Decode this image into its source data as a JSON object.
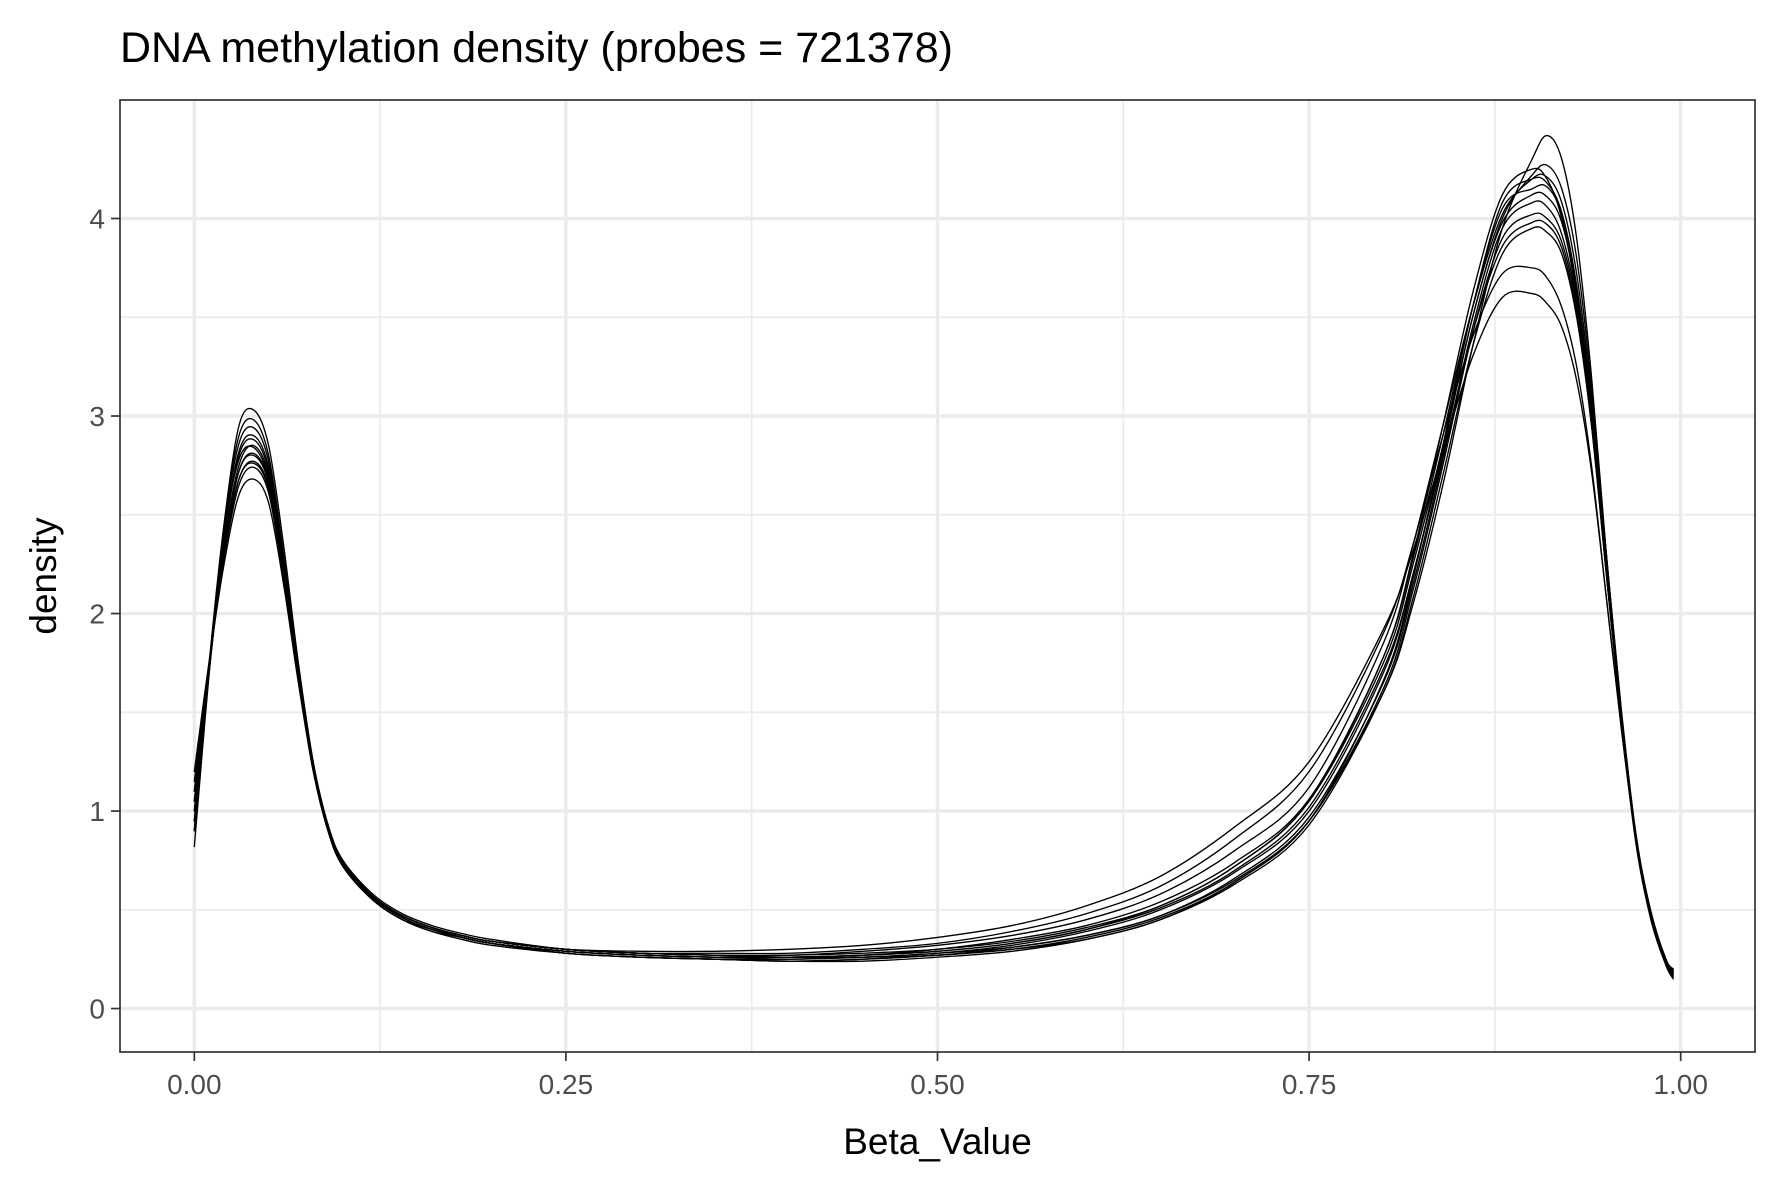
{
  "chart_data": {
    "type": "line",
    "title": "DNA methylation density (probes = 721378)",
    "xlabel": "Beta_Value",
    "ylabel": "density",
    "xlim": [
      -0.05,
      1.05
    ],
    "ylim": [
      -0.22,
      4.6
    ],
    "x_ticks": [
      0.0,
      0.25,
      0.5,
      0.75,
      1.0
    ],
    "x_tick_labels": [
      "0.00",
      "0.25",
      "0.50",
      "0.75",
      "1.00"
    ],
    "y_ticks": [
      0,
      1,
      2,
      3,
      4
    ],
    "y_tick_labels": [
      "0",
      "1",
      "2",
      "3",
      "4"
    ],
    "grid": true,
    "legend": "none",
    "line_color": "#000000",
    "x": [
      0,
      0.01,
      0.02,
      0.03,
      0.04,
      0.05,
      0.06,
      0.07,
      0.08,
      0.09,
      0.1,
      0.12,
      0.14,
      0.16,
      0.18,
      0.2,
      0.25,
      0.3,
      0.35,
      0.4,
      0.45,
      0.5,
      0.55,
      0.6,
      0.65,
      0.7,
      0.75,
      0.8,
      0.82,
      0.84,
      0.86,
      0.88,
      0.9,
      0.91,
      0.92,
      0.93,
      0.94,
      0.95,
      0.96,
      0.97,
      0.98,
      0.99,
      0.995
    ],
    "series": [
      {
        "values": [
          0.82,
          1.7,
          2.45,
          2.95,
          3.03,
          2.85,
          2.35,
          1.75,
          1.25,
          0.93,
          0.75,
          0.58,
          0.48,
          0.42,
          0.38,
          0.35,
          0.3,
          0.28,
          0.27,
          0.26,
          0.26,
          0.28,
          0.31,
          0.37,
          0.47,
          0.65,
          0.95,
          1.6,
          2.05,
          2.65,
          3.35,
          3.95,
          4.3,
          4.42,
          4.3,
          3.9,
          3.2,
          2.3,
          1.5,
          0.85,
          0.45,
          0.22,
          0.15
        ]
      },
      {
        "values": [
          0.9,
          1.75,
          2.45,
          2.9,
          2.98,
          2.8,
          2.3,
          1.72,
          1.23,
          0.92,
          0.74,
          0.57,
          0.47,
          0.41,
          0.37,
          0.34,
          0.3,
          0.28,
          0.27,
          0.27,
          0.28,
          0.3,
          0.34,
          0.41,
          0.52,
          0.72,
          1.05,
          1.75,
          2.25,
          2.85,
          3.5,
          4.0,
          4.22,
          4.27,
          4.15,
          3.8,
          3.15,
          2.3,
          1.5,
          0.85,
          0.46,
          0.23,
          0.16
        ]
      },
      {
        "values": [
          0.95,
          1.72,
          2.4,
          2.82,
          2.9,
          2.74,
          2.26,
          1.7,
          1.22,
          0.91,
          0.74,
          0.57,
          0.47,
          0.41,
          0.37,
          0.34,
          0.3,
          0.28,
          0.27,
          0.27,
          0.29,
          0.32,
          0.37,
          0.45,
          0.58,
          0.8,
          1.12,
          1.85,
          2.35,
          2.95,
          3.55,
          4.02,
          4.2,
          4.21,
          4.08,
          3.72,
          3.1,
          2.3,
          1.52,
          0.88,
          0.48,
          0.24,
          0.17
        ]
      },
      {
        "values": [
          1.0,
          1.72,
          2.35,
          2.75,
          2.85,
          2.7,
          2.24,
          1.7,
          1.22,
          0.91,
          0.73,
          0.56,
          0.46,
          0.4,
          0.36,
          0.33,
          0.29,
          0.27,
          0.26,
          0.26,
          0.27,
          0.3,
          0.35,
          0.42,
          0.54,
          0.74,
          1.06,
          1.78,
          2.28,
          2.9,
          3.55,
          4.05,
          4.15,
          4.16,
          4.02,
          3.65,
          3.05,
          2.25,
          1.5,
          0.87,
          0.48,
          0.24,
          0.18
        ]
      },
      {
        "values": [
          1.05,
          1.72,
          2.32,
          2.72,
          2.81,
          2.67,
          2.22,
          1.69,
          1.22,
          0.91,
          0.73,
          0.56,
          0.46,
          0.4,
          0.36,
          0.33,
          0.29,
          0.27,
          0.26,
          0.25,
          0.26,
          0.28,
          0.32,
          0.39,
          0.5,
          0.69,
          1.0,
          1.7,
          2.2,
          2.82,
          3.5,
          3.98,
          4.12,
          4.11,
          3.98,
          3.62,
          3.02,
          2.22,
          1.48,
          0.86,
          0.47,
          0.24,
          0.18
        ]
      },
      {
        "values": [
          1.1,
          1.74,
          2.3,
          2.68,
          2.77,
          2.64,
          2.2,
          1.68,
          1.21,
          0.9,
          0.72,
          0.56,
          0.46,
          0.4,
          0.36,
          0.33,
          0.28,
          0.26,
          0.25,
          0.25,
          0.26,
          0.27,
          0.31,
          0.37,
          0.47,
          0.66,
          0.97,
          1.65,
          2.15,
          2.78,
          3.45,
          3.95,
          4.08,
          4.06,
          3.92,
          3.58,
          3.0,
          2.22,
          1.48,
          0.86,
          0.48,
          0.24,
          0.19
        ]
      },
      {
        "values": [
          1.15,
          1.75,
          2.28,
          2.65,
          2.74,
          2.61,
          2.18,
          1.67,
          1.21,
          0.9,
          0.72,
          0.55,
          0.45,
          0.4,
          0.36,
          0.33,
          0.28,
          0.26,
          0.25,
          0.24,
          0.25,
          0.27,
          0.3,
          0.36,
          0.46,
          0.64,
          0.95,
          1.62,
          2.12,
          2.75,
          3.42,
          3.9,
          4.02,
          4.0,
          3.88,
          3.55,
          2.98,
          2.22,
          1.48,
          0.86,
          0.48,
          0.25,
          0.19
        ]
      },
      {
        "values": [
          1.2,
          1.76,
          2.25,
          2.6,
          2.68,
          2.56,
          2.15,
          1.65,
          1.2,
          0.9,
          0.72,
          0.55,
          0.45,
          0.39,
          0.36,
          0.33,
          0.28,
          0.26,
          0.25,
          0.24,
          0.25,
          0.27,
          0.3,
          0.35,
          0.45,
          0.63,
          0.93,
          1.6,
          2.08,
          2.7,
          3.35,
          3.82,
          3.95,
          3.93,
          3.82,
          3.5,
          2.95,
          2.2,
          1.48,
          0.87,
          0.49,
          0.25,
          0.2
        ]
      },
      {
        "values": [
          1.0,
          1.7,
          2.38,
          2.8,
          2.88,
          2.72,
          2.25,
          1.7,
          1.22,
          0.91,
          0.73,
          0.56,
          0.47,
          0.41,
          0.37,
          0.34,
          0.3,
          0.28,
          0.28,
          0.28,
          0.3,
          0.33,
          0.39,
          0.48,
          0.62,
          0.86,
          1.2,
          1.9,
          2.35,
          2.9,
          3.4,
          3.72,
          3.75,
          3.7,
          3.55,
          3.25,
          2.75,
          2.08,
          1.42,
          0.85,
          0.48,
          0.24,
          0.19
        ]
      },
      {
        "values": [
          1.1,
          1.73,
          2.3,
          2.68,
          2.76,
          2.63,
          2.19,
          1.67,
          1.21,
          0.9,
          0.72,
          0.56,
          0.46,
          0.4,
          0.37,
          0.34,
          0.3,
          0.29,
          0.29,
          0.3,
          0.32,
          0.36,
          0.42,
          0.52,
          0.67,
          0.92,
          1.25,
          1.92,
          2.32,
          2.82,
          3.3,
          3.6,
          3.62,
          3.57,
          3.45,
          3.18,
          2.72,
          2.08,
          1.43,
          0.86,
          0.49,
          0.25,
          0.2
        ]
      },
      {
        "values": [
          0.9,
          1.72,
          2.43,
          2.86,
          2.94,
          2.77,
          2.28,
          1.71,
          1.23,
          0.92,
          0.74,
          0.57,
          0.47,
          0.41,
          0.37,
          0.34,
          0.3,
          0.28,
          0.27,
          0.26,
          0.27,
          0.29,
          0.33,
          0.4,
          0.52,
          0.72,
          1.05,
          1.78,
          2.3,
          2.95,
          3.62,
          4.12,
          4.25,
          4.2,
          4.0,
          3.6,
          2.98,
          2.2,
          1.45,
          0.83,
          0.45,
          0.23,
          0.17
        ]
      },
      {
        "values": [
          1.05,
          1.73,
          2.33,
          2.72,
          2.8,
          2.66,
          2.21,
          1.68,
          1.21,
          0.9,
          0.72,
          0.56,
          0.46,
          0.4,
          0.36,
          0.33,
          0.29,
          0.27,
          0.26,
          0.26,
          0.27,
          0.29,
          0.33,
          0.4,
          0.51,
          0.7,
          1.02,
          1.72,
          2.2,
          2.8,
          3.42,
          3.86,
          3.98,
          3.97,
          3.85,
          3.52,
          2.96,
          2.2,
          1.47,
          0.86,
          0.48,
          0.25,
          0.19
        ]
      },
      {
        "values": [
          0.95,
          1.74,
          2.4,
          2.78,
          2.84,
          2.68,
          2.22,
          1.68,
          1.21,
          0.9,
          0.72,
          0.55,
          0.45,
          0.39,
          0.35,
          0.32,
          0.28,
          0.26,
          0.25,
          0.24,
          0.24,
          0.26,
          0.29,
          0.35,
          0.45,
          0.64,
          0.95,
          1.66,
          2.18,
          2.85,
          3.55,
          4.08,
          4.2,
          4.18,
          4.03,
          3.66,
          3.05,
          2.25,
          1.48,
          0.86,
          0.47,
          0.24,
          0.18
        ]
      }
    ]
  }
}
